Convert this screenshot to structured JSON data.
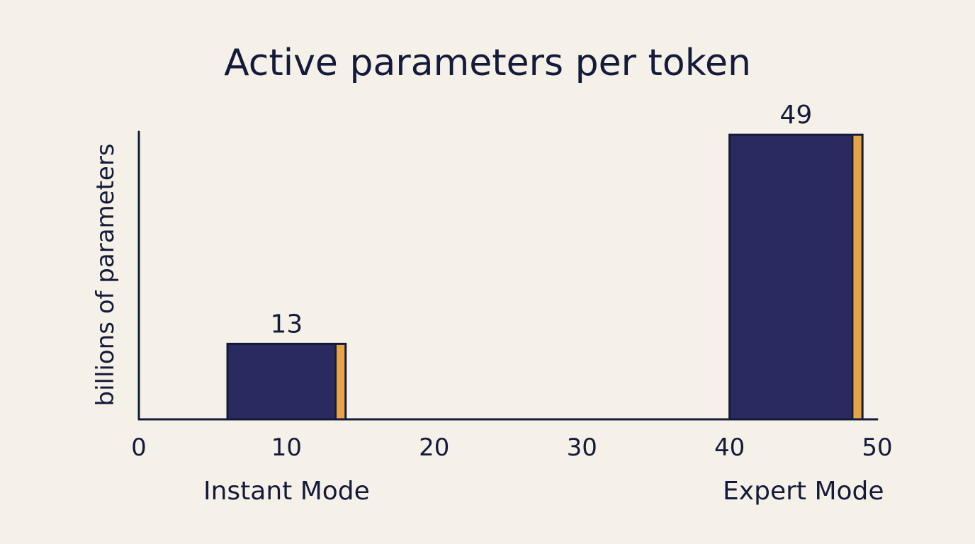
{
  "chart_data": {
    "type": "bar",
    "title": "Active parameters per token",
    "ylabel": "billions of parameters",
    "xlabel": "",
    "xlim": [
      0,
      50
    ],
    "xticks": [
      0,
      10,
      20,
      30,
      40,
      50
    ],
    "categories": [
      "Instant Mode",
      "Expert Mode"
    ],
    "category_x": [
      10,
      45
    ],
    "bar_span": [
      [
        6,
        14
      ],
      [
        40,
        49
      ]
    ],
    "values": [
      13,
      49
    ],
    "data_labels": [
      "13",
      "49"
    ],
    "grid": false,
    "legend": "none",
    "colors": {
      "bar_fill": "#2a2a60",
      "bar_accent": "#e5a445",
      "axis": "#141a3a",
      "text": "#141a3a",
      "background": "#f5f1e8"
    }
  }
}
